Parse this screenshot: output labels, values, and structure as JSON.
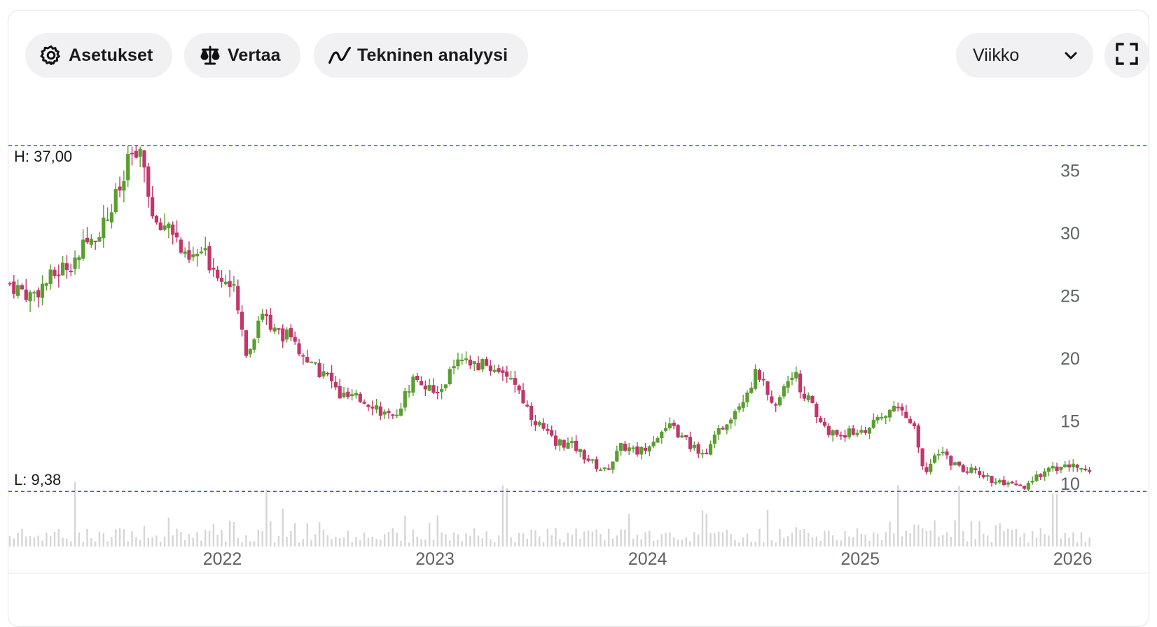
{
  "toolbar": {
    "settings_label": "Asetukset",
    "compare_label": "Vertaa",
    "technical_label": "Tekninen analyysi",
    "interval_selected": "Viikko"
  },
  "icons": {
    "settings": "gear-icon",
    "compare": "scale-icon",
    "technical": "trend-line-icon",
    "dropdown": "chevron-down-icon",
    "fullscreen": "fullscreen-icon"
  },
  "colors": {
    "up": "#5a9e2f",
    "down": "#c2366b",
    "hl_line": "#2b5cff",
    "volume": "#d6d6d6"
  },
  "chart_data": {
    "type": "candlestick",
    "interval": "weekly",
    "high_label": "H: 37,00",
    "low_label": "L: 9,38",
    "high": 37.0,
    "low": 9.38,
    "y_ticks": [
      35,
      30,
      25,
      20,
      15,
      10
    ],
    "x_ticks": [
      "2022",
      "2023",
      "2024",
      "2025",
      "2026"
    ],
    "ylim": [
      9,
      37.5
    ],
    "x_start": 2021.0,
    "x_end": 2026.08,
    "anchors": [
      [
        2021.0,
        26.0
      ],
      [
        2021.1,
        25.0
      ],
      [
        2021.2,
        26.5
      ],
      [
        2021.3,
        28.0
      ],
      [
        2021.38,
        29.5
      ],
      [
        2021.45,
        31.0
      ],
      [
        2021.52,
        33.5
      ],
      [
        2021.58,
        36.5
      ],
      [
        2021.64,
        35.0
      ],
      [
        2021.68,
        30.0
      ],
      [
        2021.75,
        31.0
      ],
      [
        2021.83,
        27.5
      ],
      [
        2021.9,
        28.5
      ],
      [
        2022.0,
        26.5
      ],
      [
        2022.05,
        25.5
      ],
      [
        2022.12,
        20.0
      ],
      [
        2022.18,
        24.0
      ],
      [
        2022.25,
        22.0
      ],
      [
        2022.3,
        22.0
      ],
      [
        2022.4,
        19.5
      ],
      [
        2022.5,
        18.5
      ],
      [
        2022.55,
        17.0
      ],
      [
        2022.7,
        16.5
      ],
      [
        2022.8,
        15.0
      ],
      [
        2022.9,
        18.5
      ],
      [
        2023.0,
        17.0
      ],
      [
        2023.1,
        19.5
      ],
      [
        2023.2,
        19.5
      ],
      [
        2023.35,
        19.0
      ],
      [
        2023.45,
        15.5
      ],
      [
        2023.55,
        13.5
      ],
      [
        2023.65,
        13.0
      ],
      [
        2023.75,
        11.5
      ],
      [
        2023.8,
        11.0
      ],
      [
        2023.88,
        13.0
      ],
      [
        2023.96,
        12.5
      ],
      [
        2024.05,
        14.0
      ],
      [
        2024.12,
        14.5
      ],
      [
        2024.2,
        13.0
      ],
      [
        2024.28,
        12.5
      ],
      [
        2024.35,
        14.5
      ],
      [
        2024.45,
        17.0
      ],
      [
        2024.52,
        19.0
      ],
      [
        2024.58,
        16.0
      ],
      [
        2024.68,
        19.0
      ],
      [
        2024.76,
        16.5
      ],
      [
        2024.85,
        14.0
      ],
      [
        2024.95,
        14.0
      ],
      [
        2025.05,
        14.5
      ],
      [
        2025.15,
        16.0
      ],
      [
        2025.25,
        15.0
      ],
      [
        2025.3,
        11.0
      ],
      [
        2025.38,
        12.5
      ],
      [
        2025.48,
        11.0
      ],
      [
        2025.55,
        11.0
      ],
      [
        2025.65,
        10.0
      ],
      [
        2025.78,
        9.6
      ],
      [
        2025.86,
        11.0
      ],
      [
        2025.95,
        11.4
      ],
      [
        2026.08,
        11.2
      ]
    ],
    "volume_spikes": [
      2021.3,
      2022.2,
      2023.33,
      2025.18,
      2025.46,
      2025.9,
      2025.93
    ]
  }
}
